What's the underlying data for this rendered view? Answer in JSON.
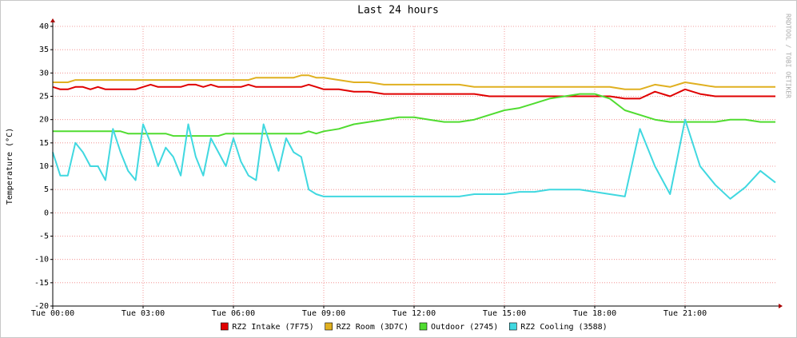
{
  "chart_data": {
    "type": "line",
    "title": "Last 24 hours",
    "y_label": "Temperature (°C)",
    "side_note": "RRDTOOL / TOBI OETIKER",
    "xlim": [
      0,
      24
    ],
    "xticks": [
      {
        "value": 0,
        "label": "Tue 00:00"
      },
      {
        "value": 3,
        "label": "Tue 03:00"
      },
      {
        "value": 6,
        "label": "Tue 06:00"
      },
      {
        "value": 9,
        "label": "Tue 09:00"
      },
      {
        "value": 12,
        "label": "Tue 12:00"
      },
      {
        "value": 15,
        "label": "Tue 15:00"
      },
      {
        "value": 18,
        "label": "Tue 18:00"
      },
      {
        "value": 21,
        "label": "Tue 21:00"
      }
    ],
    "ylim": [
      -20,
      40
    ],
    "yticks": [
      -20,
      -15,
      -10,
      -5,
      0,
      5,
      10,
      15,
      20,
      25,
      30,
      35,
      40
    ],
    "grid": true,
    "legend": "bottom",
    "x": [
      0,
      0.25,
      0.5,
      0.75,
      1,
      1.25,
      1.5,
      1.75,
      2,
      2.25,
      2.5,
      2.75,
      3,
      3.25,
      3.5,
      3.75,
      4,
      4.25,
      4.5,
      4.75,
      5,
      5.25,
      5.5,
      5.75,
      6,
      6.25,
      6.5,
      6.75,
      7,
      7.25,
      7.5,
      7.75,
      8,
      8.25,
      8.5,
      8.75,
      9,
      9.5,
      10,
      10.5,
      11,
      11.5,
      12,
      12.5,
      13,
      13.5,
      14,
      14.5,
      15,
      15.5,
      16,
      16.5,
      17,
      17.5,
      18,
      18.5,
      19,
      19.5,
      20,
      20.5,
      21,
      21.5,
      22,
      22.5,
      23,
      23.5,
      24
    ],
    "series": [
      {
        "name": "RZ2 Intake (7F75)",
        "color": "#e00000",
        "values": [
          27,
          26.5,
          26.5,
          27,
          27,
          26.5,
          27,
          26.5,
          26.5,
          26.5,
          26.5,
          26.5,
          27,
          27.5,
          27,
          27,
          27,
          27,
          27.5,
          27.5,
          27,
          27.5,
          27,
          27,
          27,
          27,
          27.5,
          27,
          27,
          27,
          27,
          27,
          27,
          27,
          27.5,
          27,
          26.5,
          26.5,
          26,
          26,
          25.5,
          25.5,
          25.5,
          25.5,
          25.5,
          25.5,
          25.5,
          25,
          25,
          25,
          25,
          25,
          25,
          25,
          25,
          25,
          24.5,
          24.5,
          26,
          25,
          26.5,
          25.5,
          25,
          25,
          25,
          25,
          25
        ]
      },
      {
        "name": "RZ2 Room (3D7C)",
        "color": "#e0b020",
        "values": [
          28,
          28,
          28,
          28.5,
          28.5,
          28.5,
          28.5,
          28.5,
          28.5,
          28.5,
          28.5,
          28.5,
          28.5,
          28.5,
          28.5,
          28.5,
          28.5,
          28.5,
          28.5,
          28.5,
          28.5,
          28.5,
          28.5,
          28.5,
          28.5,
          28.5,
          28.5,
          29,
          29,
          29,
          29,
          29,
          29,
          29.5,
          29.5,
          29,
          29,
          28.5,
          28,
          28,
          27.5,
          27.5,
          27.5,
          27.5,
          27.5,
          27.5,
          27,
          27,
          27,
          27,
          27,
          27,
          27,
          27,
          27,
          27,
          26.5,
          26.5,
          27.5,
          27,
          28,
          27.5,
          27,
          27,
          27,
          27,
          27
        ]
      },
      {
        "name": "Outdoor (2745)",
        "color": "#50dc30",
        "values": [
          17.5,
          17.5,
          17.5,
          17.5,
          17.5,
          17.5,
          17.5,
          17.5,
          17.5,
          17.5,
          17,
          17,
          17,
          17,
          17,
          17,
          16.5,
          16.5,
          16.5,
          16.5,
          16.5,
          16.5,
          16.5,
          17,
          17,
          17,
          17,
          17,
          17,
          17,
          17,
          17,
          17,
          17,
          17.5,
          17,
          17.5,
          18,
          19,
          19.5,
          20,
          20.5,
          20.5,
          20,
          19.5,
          19.5,
          20,
          21,
          22,
          22.5,
          23.5,
          24.5,
          25,
          25.5,
          25.5,
          24.5,
          22,
          21,
          20,
          19.5,
          19.5,
          19.5,
          19.5,
          20,
          20,
          19.5,
          19.5
        ]
      },
      {
        "name": "RZ2 Cooling (3588)",
        "color": "#40d8e0",
        "values": [
          13,
          8,
          8,
          15,
          13,
          10,
          10,
          7,
          18,
          13,
          9,
          7,
          19,
          15,
          10,
          14,
          12,
          8,
          19,
          12,
          8,
          16,
          13,
          10,
          16,
          11,
          8,
          7,
          19,
          14,
          9,
          16,
          13,
          12,
          5,
          4,
          3.5,
          3.5,
          3.5,
          3.5,
          3.5,
          3.5,
          3.5,
          3.5,
          3.5,
          3.5,
          4,
          4,
          4,
          4.5,
          4.5,
          5,
          5,
          5,
          4.5,
          4,
          3.5,
          18,
          10,
          4,
          20,
          10,
          6,
          3,
          5.5,
          9,
          6.5
        ]
      }
    ]
  }
}
